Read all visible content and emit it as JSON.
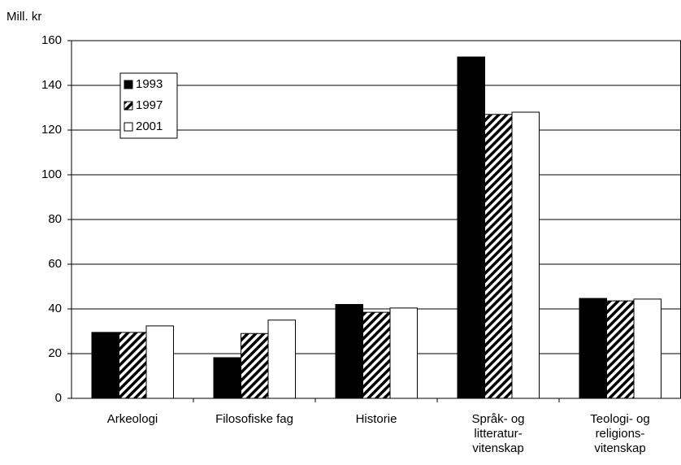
{
  "chart_data": {
    "type": "bar",
    "y_label": "Mill. kr",
    "categories": [
      [
        "Arkeologi"
      ],
      [
        "Filosofiske fag"
      ],
      [
        "Historie"
      ],
      [
        "Språk- og",
        "litteratur-",
        "vitenskap"
      ],
      [
        "Teologi- og",
        "religions-",
        "vitenskap"
      ]
    ],
    "series": [
      {
        "name": "1993",
        "color": "#000000",
        "values": [
          29.5,
          18.2,
          42,
          152.7,
          44.7
        ]
      },
      {
        "name": "1997",
        "color": "hatch",
        "values": [
          29.5,
          29,
          38.5,
          127,
          43.6
        ]
      },
      {
        "name": "2001",
        "color": "#ffffff",
        "values": [
          32.4,
          35,
          40.4,
          128,
          44.4
        ]
      }
    ],
    "ylim": [
      0,
      160
    ],
    "yticks": [
      0,
      20,
      40,
      60,
      80,
      100,
      120,
      140,
      160
    ],
    "grid": true,
    "legend": "top-left"
  }
}
